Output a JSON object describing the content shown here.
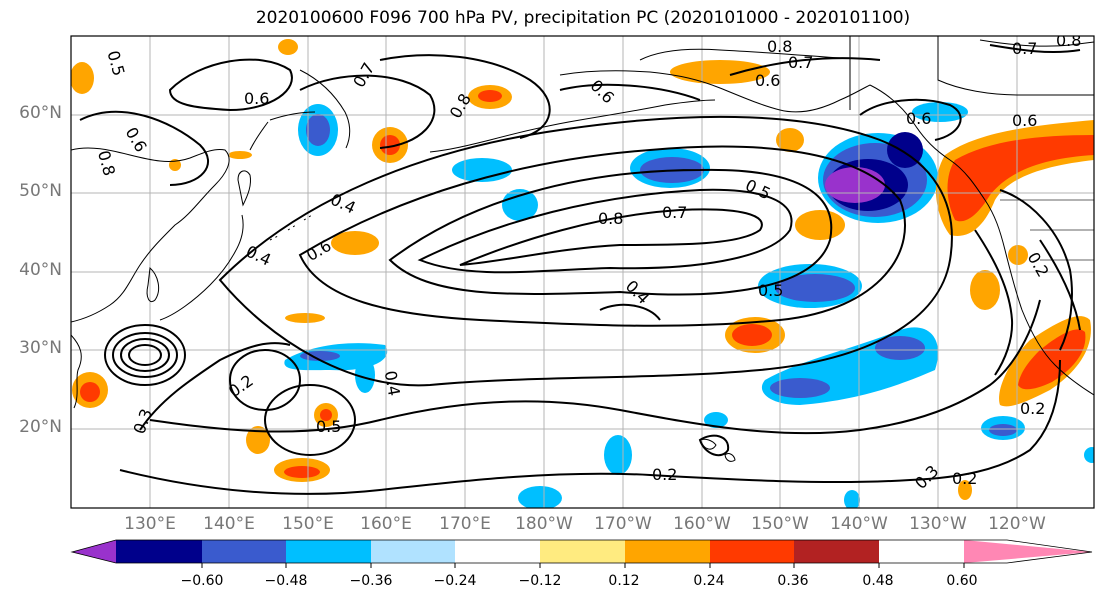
{
  "title": "2020100600 F096 700 hPa PV, precipitation PC (2020101000 - 2020101100)",
  "lat_labels": [
    "60°N",
    "50°N",
    "40°N",
    "30°N",
    "20°N"
  ],
  "lon_labels": [
    "130°E",
    "140°E",
    "150°E",
    "160°E",
    "170°E",
    "180°W",
    "170°W",
    "160°W",
    "150°W",
    "140°W",
    "130°W",
    "120°W"
  ],
  "colorbar": {
    "ticks": [
      "−0.60",
      "−0.48",
      "−0.36",
      "−0.24",
      "−0.12",
      "0.12",
      "0.24",
      "0.36",
      "0.48",
      "0.60"
    ],
    "colors": [
      "#9932CC",
      "#00008B",
      "#3A5BCE",
      "#00BFFF",
      "#B0E2FF",
      "#FFFFFF",
      "#FFEB80",
      "#FFA500",
      "#FF3A00",
      "#B22222",
      "#FF87B4"
    ]
  },
  "contour_labels": [
    "0.5",
    "0.6",
    "0.7",
    "0.8",
    "0.8",
    "0.7",
    "0.6",
    "0.6",
    "0.4",
    "0.4",
    "0.6",
    "0.8",
    "0.7",
    "0.4",
    "0.5",
    "0.5",
    "0.6",
    "0.2",
    "0.3",
    "0.5",
    "0.4",
    "0.2",
    "0.3",
    "0.2",
    "0.2",
    "0.2",
    "0.7",
    "0.8",
    "0.6",
    "0.6",
    "0.8"
  ]
}
